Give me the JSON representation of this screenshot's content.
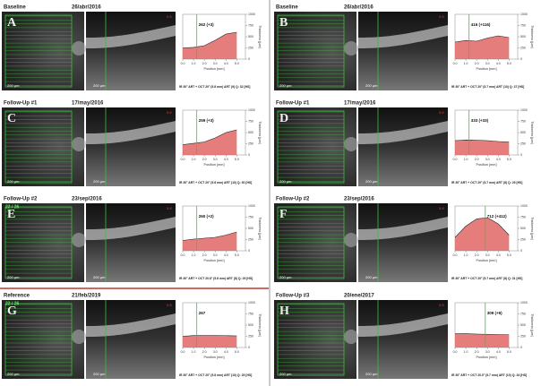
{
  "shared": {
    "ylabel": "Thickness [µm]",
    "xlabel": "Position [mm]",
    "scale": "200 µm",
    "xlim": [
      0,
      5.8
    ],
    "xticks": [
      {
        "value": 0,
        "label": "0.0"
      },
      {
        "value": 1,
        "label": "1.0"
      },
      {
        "value": 2,
        "label": "2.0"
      },
      {
        "value": 3,
        "label": "3.0"
      },
      {
        "value": 4,
        "label": "4.0"
      },
      {
        "value": 5,
        "label": "5.0"
      }
    ],
    "ylim": [
      0,
      1000
    ],
    "yticks": [
      0,
      250,
      500,
      750,
      1000
    ],
    "profile_x": [
      0,
      1,
      2,
      3,
      4,
      5
    ]
  },
  "panels": [
    {
      "letter": "A",
      "label": "Baseline",
      "date": "26/abr/2016",
      "tag": "5.8",
      "value_label": "262 (+3)",
      "marker_x": 1.3,
      "footer": "IR 30° ART + OCT 20° (5.8 mm) ART (9) Q: 32 [HS]",
      "profile": [
        250,
        262,
        300,
        420,
        560,
        600
      ]
    },
    {
      "letter": "B",
      "label": "Baseline",
      "date": "26/abr/2016",
      "tag": "5.8",
      "value_label": "416 (+116)",
      "marker_x": 1.3,
      "footer": "IR 30° ART + OCT 20° (5.7 mm) ART (10) Q: 37 [HS]",
      "profile": [
        380,
        416,
        400,
        470,
        520,
        480
      ]
    },
    {
      "letter": "C",
      "label": "Follow-Up #1",
      "date": "17/may/2016",
      "tag": "5.8",
      "value_label": "259 (+3)",
      "marker_x": 1.3,
      "footer": "IR 30° ART + OCT 20° (5.8 mm) ART (10) Q: 30 [HS]",
      "profile": [
        230,
        259,
        290,
        380,
        500,
        560
      ]
    },
    {
      "letter": "D",
      "label": "Follow-Up #1",
      "date": "17/may/2016",
      "tag": "5.8",
      "value_label": "333 (+33)",
      "marker_x": 1.3,
      "footer": "IR 30° ART + OCT 20° (5.7 mm) ART (8) Q: 29 [HS]",
      "profile": [
        320,
        333,
        330,
        320,
        300,
        290
      ]
    },
    {
      "letter": "E",
      "label": "Follow-Up #2",
      "date": "23/sep/2016",
      "tag": "5.8",
      "overlay": "22 / 26",
      "value_label": "260 (+2)",
      "marker_x": 1.3,
      "footer": "IR 30° ART + OCT 20.6° (5.8 mm) ART (8) Q: 29 [HS]",
      "profile": [
        230,
        260,
        280,
        300,
        350,
        420
      ]
    },
    {
      "letter": "F",
      "label": "Follow-Up #2",
      "date": "23/sep/2016",
      "tag": "5.8",
      "value_label": "712 (+412)",
      "marker_x": 2.8,
      "footer": "IR 30° ART + OCT 20° (5.7 mm) ART (8) Q: 31 [HS]",
      "profile": [
        300,
        550,
        712,
        740,
        600,
        350
      ]
    },
    {
      "letter": "G",
      "label": "Reference",
      "date": "21/feb/2019",
      "tag": "5.8",
      "overlay": "22 / 26",
      "value_label": "267",
      "marker_x": 1.3,
      "footer": "IR 30° ART + OCT 20° (5.8 mm) ART (10) Q: 25 [HS]",
      "profile": [
        250,
        267,
        270,
        270,
        265,
        260
      ]
    },
    {
      "letter": "H",
      "label": "Follow-Up #3",
      "date": "20/ene/2017",
      "tag": "5.8",
      "value_label": "309 (+9)",
      "marker_x": 2.8,
      "footer": "IR 30° ART + OCT 20.0° (5.7 mm) ART (10) Q: 34 [HS]",
      "profile": [
        310,
        309,
        300,
        295,
        290,
        285
      ]
    }
  ]
}
